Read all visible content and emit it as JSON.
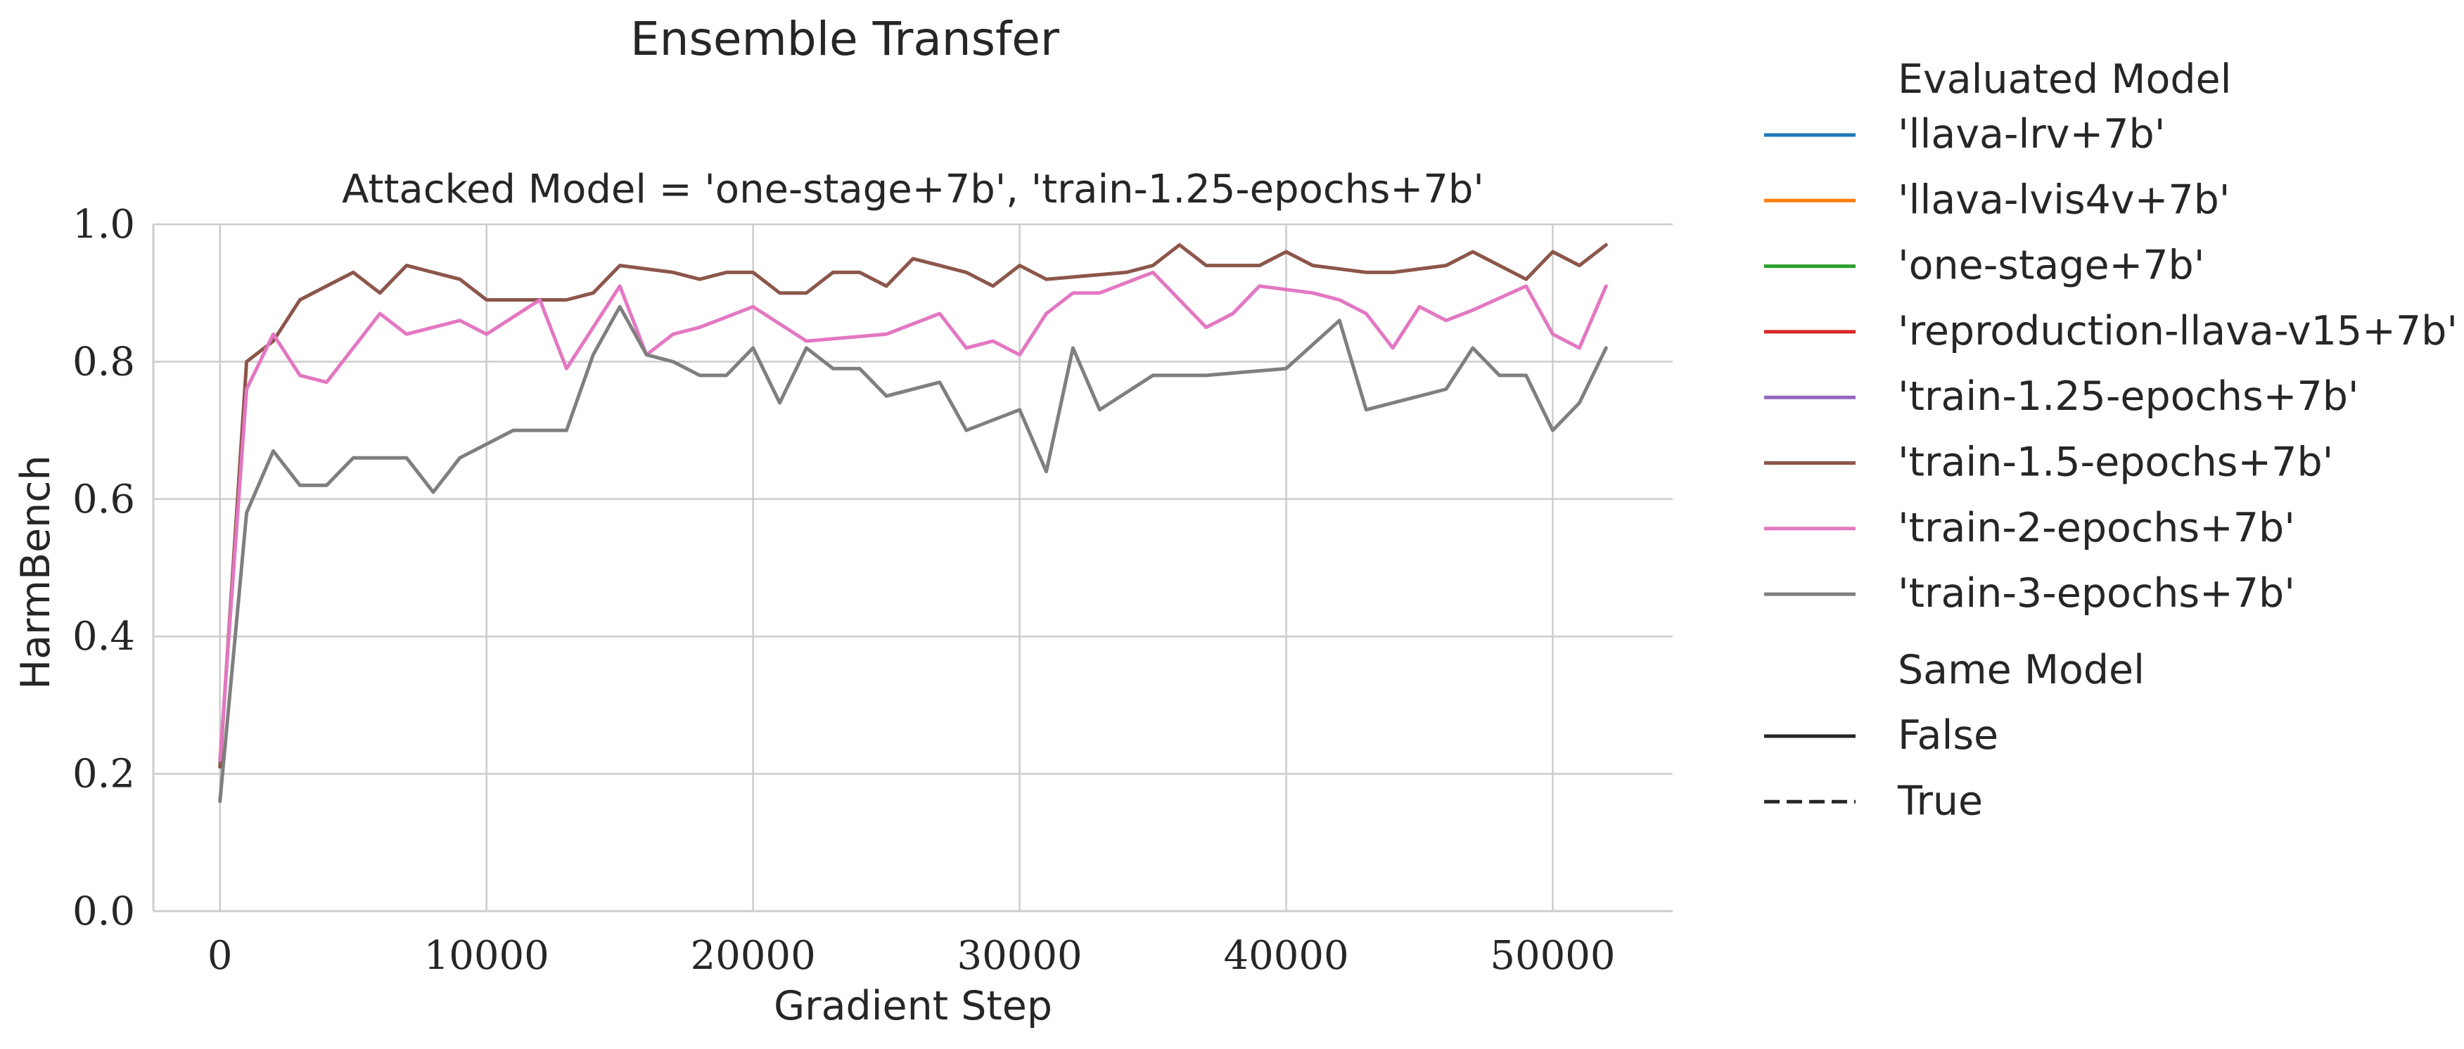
{
  "chart_data": {
    "type": "line",
    "title": "Ensemble Transfer",
    "subtitle": "Attacked Model = 'one-stage+7b', 'train-1.25-epochs+7b'",
    "xlabel": "Gradient Step",
    "ylabel": "HarmBench",
    "xlim": [
      -2500,
      54500
    ],
    "ylim": [
      0.0,
      1.0
    ],
    "xticks": [
      0,
      10000,
      20000,
      30000,
      40000,
      50000
    ],
    "xtick_labels": [
      "0",
      "10000",
      "20000",
      "30000",
      "40000",
      "50000"
    ],
    "yticks": [
      0.0,
      0.2,
      0.4,
      0.6,
      0.8,
      1.0
    ],
    "ytick_labels": [
      "0.0",
      "0.2",
      "0.4",
      "0.6",
      "0.8",
      "1.0"
    ],
    "grid": true,
    "legend_placement": "outside-right",
    "legend": {
      "hue_title": "Evaluated Model",
      "hue_entries": [
        {
          "label": "'llava-lrv+7b'",
          "color": "#1f77b4"
        },
        {
          "label": "'llava-lvis4v+7b'",
          "color": "#ff7f0e"
        },
        {
          "label": "'one-stage+7b'",
          "color": "#2ca02c"
        },
        {
          "label": "'reproduction-llava-v15+7b'",
          "color": "#d62728"
        },
        {
          "label": "'train-1.25-epochs+7b'",
          "color": "#9467bd"
        },
        {
          "label": "'train-1.5-epochs+7b'",
          "color": "#8c564b"
        },
        {
          "label": "'train-2-epochs+7b'",
          "color": "#e377c2"
        },
        {
          "label": "'train-3-epochs+7b'",
          "color": "#7f7f7f"
        }
      ],
      "style_title": "Same Model",
      "style_entries": [
        {
          "label": "False",
          "dash": "solid"
        },
        {
          "label": "True",
          "dash": "dashed"
        }
      ]
    },
    "series": [
      {
        "color": "#8c564b",
        "x": [
          0,
          1000,
          2000,
          3000,
          4000,
          5000,
          6000,
          7000,
          8000,
          9000,
          10000,
          11000,
          12000,
          13000,
          14000,
          15000,
          16000,
          17000,
          18000,
          19000,
          20000,
          21000,
          22000,
          23000,
          24000,
          25000,
          26000,
          27000,
          28000,
          29000,
          30000,
          31000,
          34000,
          35000,
          36000,
          37000,
          38000,
          39000,
          40000,
          41000,
          42000,
          43000,
          44000,
          46000,
          47000,
          49000,
          50000,
          51000,
          52000
        ],
        "y": [
          0.21,
          0.8,
          0.83,
          0.89,
          0.91,
          0.93,
          0.9,
          0.94,
          0.93,
          0.92,
          0.89,
          0.89,
          0.89,
          0.89,
          0.9,
          0.94,
          0.935,
          0.93,
          0.92,
          0.93,
          0.93,
          0.9,
          0.9,
          0.93,
          0.93,
          0.91,
          0.95,
          0.94,
          0.93,
          0.91,
          0.94,
          0.92,
          0.93,
          0.94,
          0.97,
          0.94,
          0.94,
          0.94,
          0.96,
          0.94,
          0.935,
          0.93,
          0.93,
          0.94,
          0.96,
          0.92,
          0.96,
          0.94,
          0.97
        ]
      },
      {
        "color": "#e377c2",
        "x": [
          0,
          1000,
          2000,
          3000,
          4000,
          5000,
          6000,
          7000,
          8000,
          9000,
          10000,
          11000,
          12000,
          13000,
          14000,
          15000,
          16000,
          17000,
          18000,
          19000,
          20000,
          21000,
          22000,
          25000,
          27000,
          28000,
          29000,
          30000,
          31000,
          32000,
          33000,
          35000,
          37000,
          38000,
          39000,
          40000,
          41000,
          42000,
          43000,
          44000,
          45000,
          46000,
          47000,
          49000,
          50000,
          51000,
          52000
        ],
        "y": [
          0.22,
          0.76,
          0.84,
          0.78,
          0.77,
          0.82,
          0.87,
          0.84,
          0.85,
          0.86,
          0.84,
          0.865,
          0.89,
          0.79,
          0.85,
          0.91,
          0.81,
          0.84,
          0.85,
          0.865,
          0.88,
          0.855,
          0.83,
          0.84,
          0.87,
          0.82,
          0.83,
          0.81,
          0.87,
          0.9,
          0.9,
          0.93,
          0.85,
          0.87,
          0.91,
          0.905,
          0.9,
          0.89,
          0.87,
          0.82,
          0.88,
          0.86,
          0.875,
          0.91,
          0.84,
          0.82,
          0.91
        ]
      },
      {
        "color": "#7f7f7f",
        "x": [
          0,
          1000,
          2000,
          3000,
          4000,
          5000,
          6000,
          7000,
          8000,
          9000,
          11000,
          12000,
          13000,
          14000,
          15000,
          16000,
          17000,
          18000,
          19000,
          20000,
          21000,
          22000,
          23000,
          24000,
          25000,
          27000,
          28000,
          30000,
          31000,
          32000,
          33000,
          35000,
          37000,
          40000,
          42000,
          43000,
          46000,
          47000,
          48000,
          49000,
          50000,
          51000,
          52000
        ],
        "y": [
          0.16,
          0.58,
          0.67,
          0.62,
          0.62,
          0.66,
          0.66,
          0.66,
          0.61,
          0.66,
          0.7,
          0.7,
          0.7,
          0.81,
          0.88,
          0.81,
          0.8,
          0.78,
          0.78,
          0.82,
          0.74,
          0.82,
          0.79,
          0.79,
          0.75,
          0.77,
          0.7,
          0.73,
          0.64,
          0.82,
          0.73,
          0.78,
          0.78,
          0.79,
          0.86,
          0.73,
          0.76,
          0.82,
          0.78,
          0.78,
          0.7,
          0.74,
          0.82
        ]
      }
    ]
  }
}
